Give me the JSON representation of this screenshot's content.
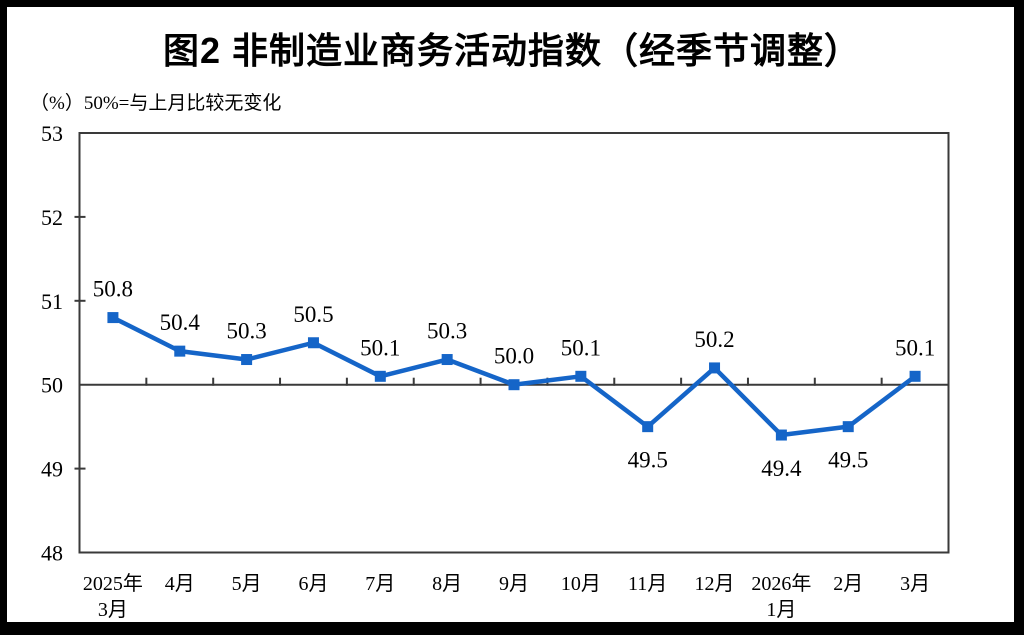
{
  "header": {
    "title": "图2 非制造业商务活动指数（经季节调整）",
    "unit_note": "（%）50%=与上月比较无变化"
  },
  "chart_data": {
    "type": "line",
    "title": "图2 非制造业商务活动指数（经季节调整）",
    "subtitle": "（%）50%=与上月比较无变化",
    "categories": [
      [
        "2025年",
        "3月"
      ],
      [
        "4月"
      ],
      [
        "5月"
      ],
      [
        "6月"
      ],
      [
        "7月"
      ],
      [
        "8月"
      ],
      [
        "9月"
      ],
      [
        "10月"
      ],
      [
        "11月"
      ],
      [
        "12月"
      ],
      [
        "2026年",
        "1月"
      ],
      [
        "2月"
      ],
      [
        "3月"
      ]
    ],
    "series": [
      {
        "name": "非制造业商务活动指数",
        "values": [
          50.8,
          50.4,
          50.3,
          50.5,
          50.1,
          50.3,
          50.0,
          50.1,
          49.5,
          50.2,
          49.4,
          49.5,
          50.1
        ]
      }
    ],
    "value_labels": [
      "50.8",
      "50.4",
      "50.3",
      "50.5",
      "50.1",
      "50.3",
      "50.0",
      "50.1",
      "49.5",
      "50.2",
      "49.4",
      "49.5",
      "50.1"
    ],
    "yticks": [
      48,
      49,
      50,
      51,
      52,
      53
    ],
    "ylim": [
      48,
      53
    ],
    "reference_line": 50,
    "xlabel": "",
    "ylabel": "%",
    "grid": false,
    "legend": false,
    "marker": "square",
    "colors": {
      "line": "#1565C8",
      "axis": "#3A3A3A",
      "text": "#000000",
      "background": "#FFFFFF",
      "frame_border": "#000000"
    }
  }
}
